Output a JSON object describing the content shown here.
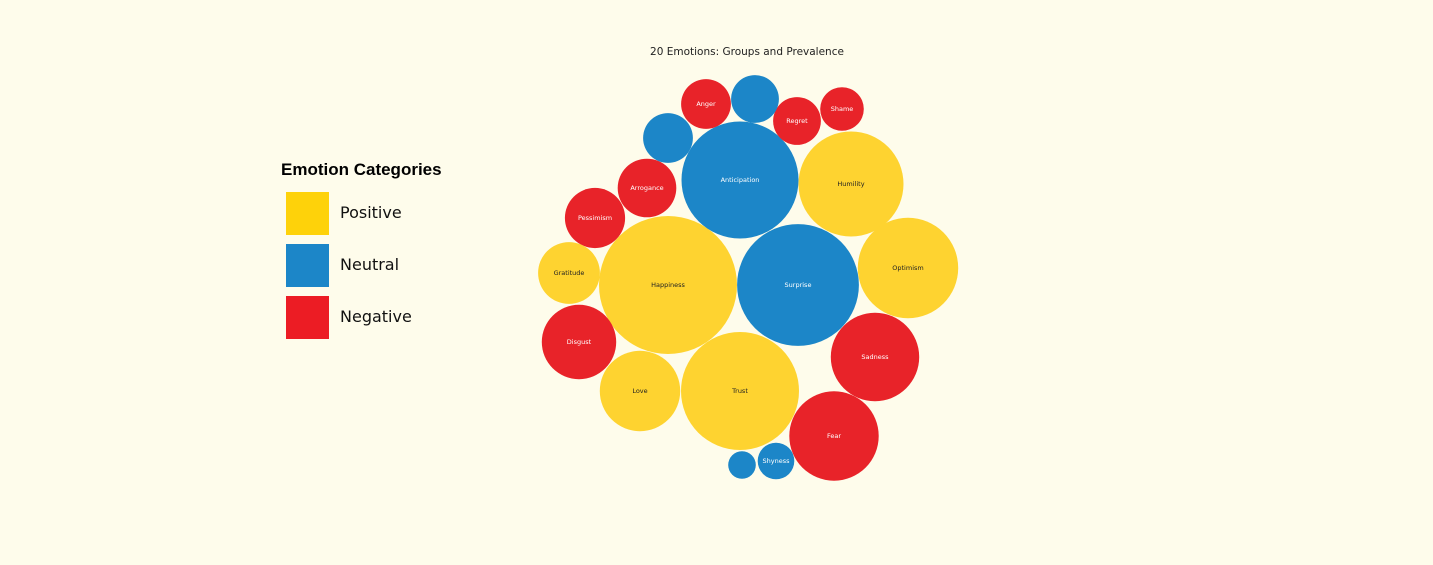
{
  "colors": {
    "background": "#FEFCEB",
    "Positive": "#FED330",
    "Neutral": "#1C86C8",
    "Negative": "#E82329"
  },
  "legend": {
    "title": "Emotion Categories",
    "items": [
      {
        "label": "Positive",
        "color": "#FED20A"
      },
      {
        "label": "Neutral",
        "color": "#1C86C8"
      },
      {
        "label": "Negative",
        "color": "#EC1C24"
      }
    ]
  },
  "chart_data": {
    "type": "bubble",
    "title": "20 Emotions: Groups and Prevalence",
    "legend_position": "left",
    "grid": false,
    "bubbles": [
      {
        "label": "Happiness",
        "category": "Positive",
        "value": 100
      },
      {
        "label": "Surprise",
        "category": "Neutral",
        "value": 78
      },
      {
        "label": "Anticipation",
        "category": "Neutral",
        "value": 72
      },
      {
        "label": "Trust",
        "category": "Positive",
        "value": 73
      },
      {
        "label": "Humility",
        "category": "Positive",
        "value": 58
      },
      {
        "label": "Optimism",
        "category": "Positive",
        "value": 53
      },
      {
        "label": "Fear",
        "category": "Negative",
        "value": 42
      },
      {
        "label": "Sadness",
        "category": "Negative",
        "value": 41
      },
      {
        "label": "Love",
        "category": "Positive",
        "value": 34
      },
      {
        "label": "Disgust",
        "category": "Negative",
        "value": 29
      },
      {
        "label": "Pessimism",
        "category": "Negative",
        "value": 19
      },
      {
        "label": "Arrogance",
        "category": "Negative",
        "value": 18
      },
      {
        "label": "Gratitude",
        "category": "Positive",
        "value": 20
      },
      {
        "label": "Anger",
        "category": "Negative",
        "value": 13
      },
      {
        "label": "Regret",
        "category": "Negative",
        "value": 12
      },
      {
        "label": "Shame",
        "category": "Negative",
        "value": 10
      },
      {
        "label": "",
        "category": "Neutral",
        "value": 13
      },
      {
        "label": "",
        "category": "Neutral",
        "value": 12
      },
      {
        "label": "Shyness",
        "category": "Neutral",
        "value": 7
      },
      {
        "label": "",
        "category": "Neutral",
        "value": 4
      }
    ]
  }
}
